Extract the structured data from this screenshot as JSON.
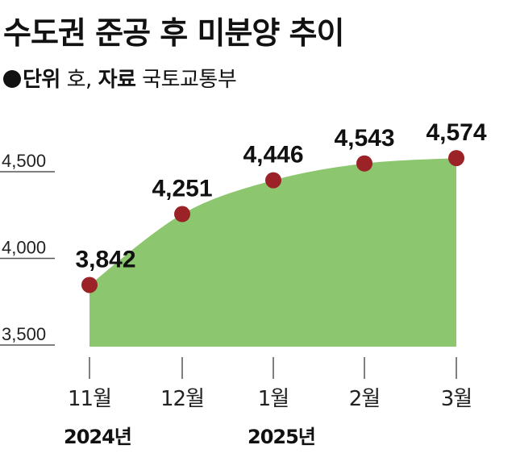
{
  "header": {
    "title": "수도권 준공 후 미분양 추이",
    "unit_label": "단위",
    "unit_value": "호,",
    "source_label": "자료",
    "source_value": "국토교통부"
  },
  "colors": {
    "area": "#8cc66e",
    "marker": "#9b2226",
    "grid": "#555555"
  },
  "chart_data": {
    "type": "area",
    "title": "수도권 준공 후 미분양 추이",
    "unit": "호",
    "source": "국토교통부",
    "categories": [
      "11월",
      "12월",
      "1월",
      "2월",
      "3월"
    ],
    "year_labels": [
      {
        "label": "2024년",
        "at": "11월"
      },
      {
        "label": "2025년",
        "at": "1월"
      }
    ],
    "values": [
      3842,
      4251,
      4446,
      4543,
      4574
    ],
    "value_labels": [
      "3,842",
      "4,251",
      "4,446",
      "4,543",
      "4,574"
    ],
    "yticks": [
      3500,
      4000,
      4500
    ],
    "ytick_labels": [
      "3,500",
      "4,000",
      "4,500"
    ],
    "ylim": [
      3500,
      4650
    ],
    "grid": true,
    "legend": "none",
    "xlabel": "",
    "ylabel": ""
  }
}
